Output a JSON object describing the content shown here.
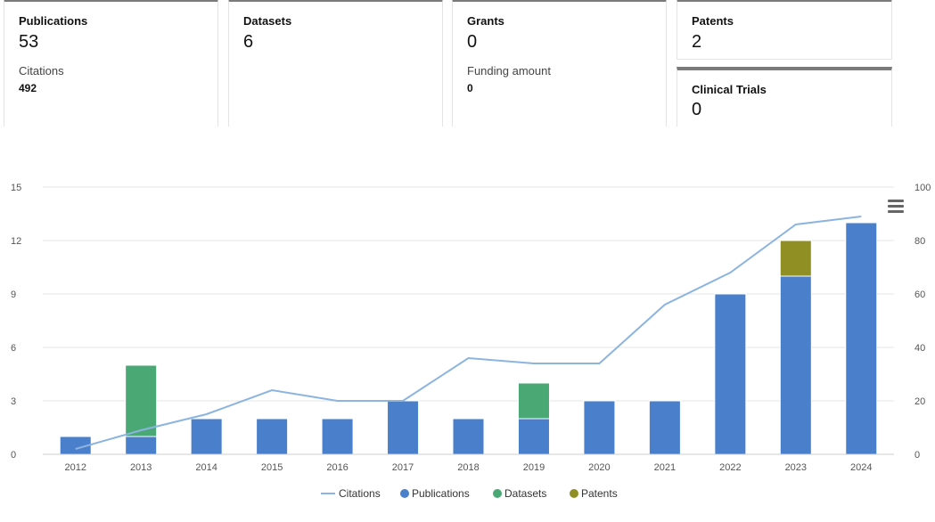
{
  "cards": {
    "publications": {
      "label": "Publications",
      "value": "53",
      "sub_label": "Citations",
      "sub_value": "492"
    },
    "datasets": {
      "label": "Datasets",
      "value": "6"
    },
    "grants": {
      "label": "Grants",
      "value": "0",
      "sub_label": "Funding amount",
      "sub_value": "0"
    },
    "patents": {
      "label": "Patents",
      "value": "2"
    },
    "clinical_trials": {
      "label": "Clinical Trials",
      "value": "0"
    }
  },
  "colors": {
    "publications": "#4a7fcb",
    "datasets": "#4aa874",
    "patents": "#8f8f23",
    "citations": "#8cb4e0"
  },
  "chart_data": {
    "type": "bar",
    "stacked": true,
    "categories": [
      "2012",
      "2013",
      "2014",
      "2015",
      "2016",
      "2017",
      "2018",
      "2019",
      "2020",
      "2021",
      "2022",
      "2023",
      "2024"
    ],
    "series": [
      {
        "name": "Publications",
        "axis": "left",
        "values": [
          1,
          1,
          2,
          2,
          2,
          3,
          2,
          2,
          3,
          3,
          9,
          10,
          13
        ]
      },
      {
        "name": "Datasets",
        "axis": "left",
        "values": [
          0,
          4,
          0,
          0,
          0,
          0,
          0,
          2,
          0,
          0,
          0,
          0,
          0
        ]
      },
      {
        "name": "Patents",
        "axis": "left",
        "values": [
          0,
          0,
          0,
          0,
          0,
          0,
          0,
          0,
          0,
          0,
          0,
          2,
          0
        ]
      },
      {
        "name": "Citations",
        "type": "line",
        "axis": "right",
        "values": [
          2,
          9,
          15,
          24,
          20,
          20,
          36,
          34,
          34,
          56,
          68,
          86,
          89
        ]
      }
    ],
    "y_left": {
      "min": 0,
      "max": 15,
      "ticks": [
        "0",
        "3",
        "6",
        "9",
        "12",
        "15"
      ]
    },
    "y_right": {
      "min": 0,
      "max": 100,
      "ticks": [
        "0",
        "20",
        "40",
        "60",
        "80",
        "100"
      ]
    },
    "legend": [
      "Citations",
      "Publications",
      "Datasets",
      "Patents"
    ],
    "legend_position": "bottom-center",
    "grid": true
  }
}
